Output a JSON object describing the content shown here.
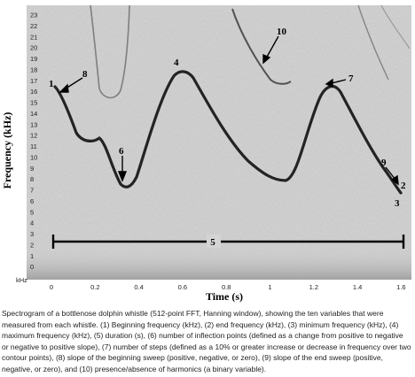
{
  "figure": {
    "y_axis_label": "Frequency (kHz)",
    "x_axis_label": "Time (s)",
    "y_unit_label": "kHz",
    "y_ticks": [
      "23",
      "22",
      "21",
      "20",
      "19",
      "18",
      "17",
      "16",
      "15",
      "14",
      "13",
      "12",
      "11",
      "10",
      "9",
      "8",
      "7",
      "6",
      "5",
      "4",
      "3",
      "2",
      "1",
      "0"
    ],
    "x_ticks": [
      "0",
      "0.2",
      "0.4",
      "0.6",
      "0.8",
      "1",
      "1.2",
      "1.4",
      "1.6"
    ],
    "annotations": [
      "1",
      "2",
      "3",
      "4",
      "5",
      "6",
      "7",
      "8",
      "9",
      "10"
    ]
  },
  "caption": "Spectrogram of a bottlenose dolphin whistle (512-point FFT, Hanning window), showing the ten variables that were measured from each whistle. (1) Beginning frequency (kHz), (2) end frequency (kHz), (3) minimum frequency (kHz), (4) maximum frequency (kHz), (5) duration (s), (6) number of inflection points (defined as a change from positive to negative or negative to positive slope), (7) number of steps (defined as a 10% or greater increase or decrease in frequency over two contour points), (8) slope of the beginning sweep (positive, negative, or zero), (9) slope of the end sweep (positive, negative, or zero), and (10) presence/absence of harmonics (a binary variable)."
}
